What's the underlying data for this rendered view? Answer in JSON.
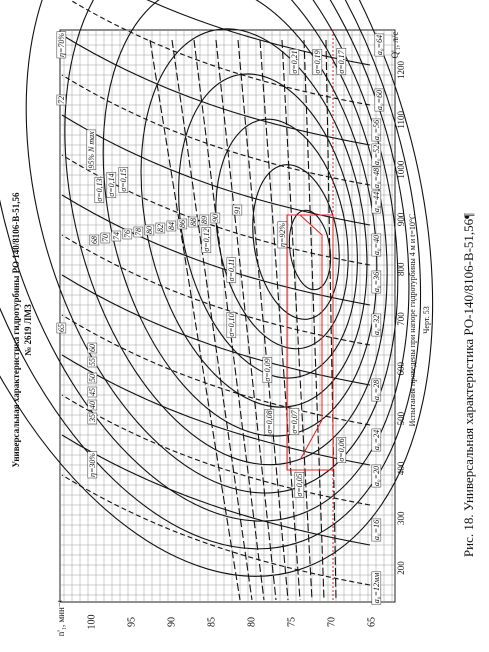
{
  "header": {
    "title": "Универсальная характеристика гидротурбины РО 140/8106-В-51,56",
    "subtitle": "№ 2619 ЛМЗ"
  },
  "figure": {
    "y_axis_label": "Q'₁, л/с",
    "x_axis_label": "n'₁, мин⁻¹",
    "n_ticks": [
      100,
      95,
      90,
      85,
      80,
      75,
      70,
      65
    ],
    "q_ticks": [
      200,
      300,
      400,
      500,
      600,
      700,
      800,
      900,
      1000,
      1100,
      1200
    ],
    "annotations": [
      "η=70%",
      "72",
      "η=30%",
      "35",
      "40",
      "45",
      "50",
      "55",
      "60",
      "65",
      "68",
      "70",
      "74",
      "76",
      "78",
      "80",
      "82",
      "84",
      "86",
      "88",
      "89",
      "90",
      "91",
      "η=92%",
      "95% N max",
      "σ=0,21",
      "σ=0,19",
      "σ=0,17",
      "σ=0,13",
      "σ=0,14",
      "σ=0,15",
      "σ=0,12",
      "σ=0,11",
      "σ=0,10",
      "σ=0,09",
      "σ=0,08",
      "σ=0,07",
      "σ=0,06",
      "σ=0,05",
      "a₀=64",
      "a₀=60",
      "a₀=56",
      "a₀=52",
      "a₀=48",
      "a₀=44",
      "a₀=40",
      "a₀=36",
      "a₀=32",
      "a₀=28",
      "a₀=24",
      "a₀=20",
      "a₀=16",
      "a₀=12мм"
    ],
    "note": "Испытания проведены при напоре гидротурбины 4 м и t=10°C",
    "drawing_number": "Черт. 53"
  },
  "caption": "Рис. 18. Универсальная характеристика РО-140/8106-В-51,56¶"
}
